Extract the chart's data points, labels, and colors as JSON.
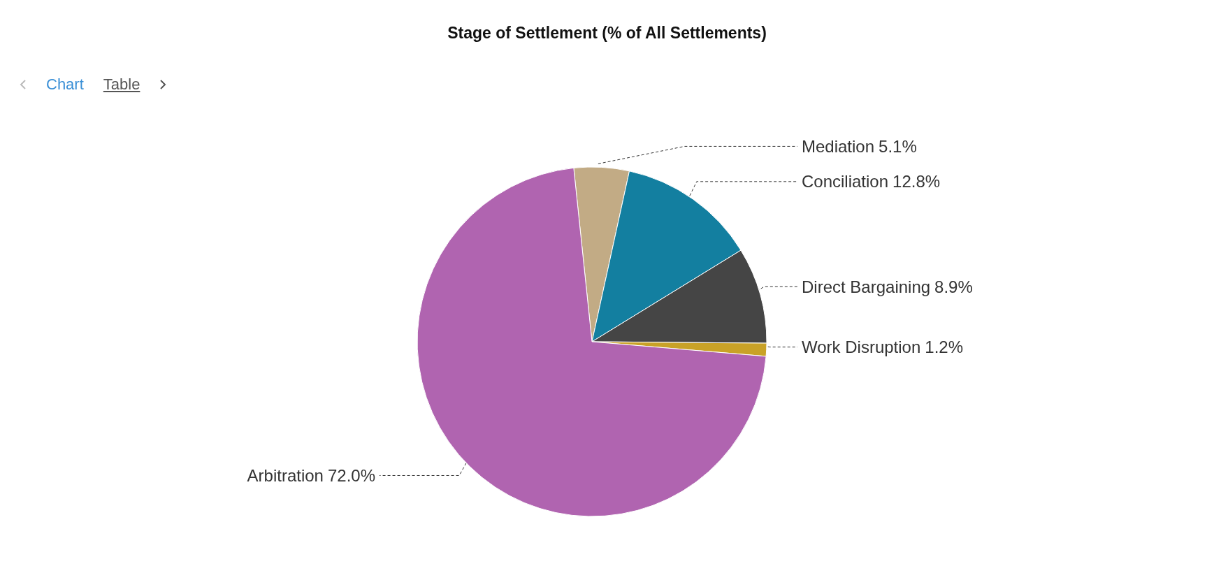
{
  "chart_data": {
    "type": "pie",
    "title": "Stage of Settlement (% of All Settlements)",
    "categories": [
      "Mediation",
      "Conciliation",
      "Direct Bargaining",
      "Work Disruption",
      "Arbitration"
    ],
    "values": [
      5.1,
      12.8,
      8.9,
      1.2,
      72.0
    ],
    "colors": [
      "#c2ab85",
      "#137fa0",
      "#454545",
      "#c9a227",
      "#b064b0"
    ],
    "value_labels": [
      "5.1%",
      "12.8%",
      "8.9%",
      "1.2%",
      "72.0%"
    ],
    "annotations": [
      "Chart",
      "Table"
    ]
  }
}
